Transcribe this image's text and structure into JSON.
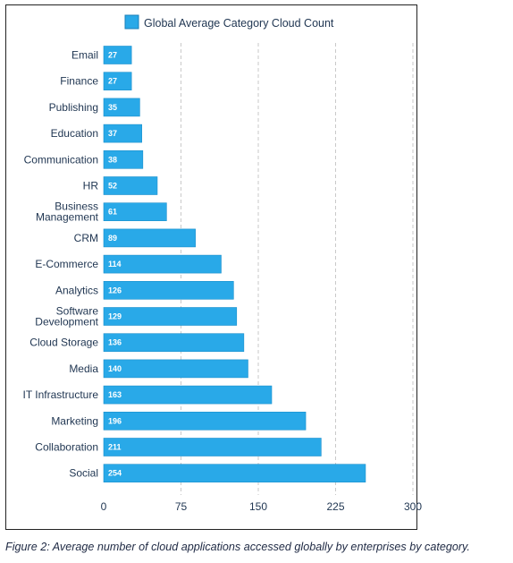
{
  "chart_data": {
    "type": "bar",
    "orientation": "horizontal",
    "legend": "top",
    "legend_label": "Global Average Category Cloud Count",
    "categories": [
      "Email",
      "Finance",
      "Publishing",
      "Education",
      "Communication",
      "HR",
      "Business Management",
      "CRM",
      "E-Commerce",
      "Analytics",
      "Software Development",
      "Cloud Storage",
      "Media",
      "IT Infrastructure",
      "Marketing",
      "Collaboration",
      "Social"
    ],
    "category_lines": [
      [
        "Email"
      ],
      [
        "Finance"
      ],
      [
        "Publishing"
      ],
      [
        "Education"
      ],
      [
        "Communication"
      ],
      [
        "HR"
      ],
      [
        "Business",
        "Management"
      ],
      [
        "CRM"
      ],
      [
        "E-Commerce"
      ],
      [
        "Analytics"
      ],
      [
        "Software",
        "Development"
      ],
      [
        "Cloud Storage"
      ],
      [
        "Media"
      ],
      [
        "IT Infrastructure"
      ],
      [
        "Marketing"
      ],
      [
        "Collaboration"
      ],
      [
        "Social"
      ]
    ],
    "values": [
      27,
      27,
      35,
      37,
      38,
      52,
      61,
      89,
      114,
      126,
      129,
      136,
      140,
      163,
      196,
      211,
      254
    ],
    "xlim": [
      0,
      300
    ],
    "xticks": [
      0,
      75,
      150,
      225,
      300
    ],
    "grid": "vertical-dashed",
    "bar_color": "#29a9e8"
  },
  "caption": "Figure 2: Average number of cloud applications accessed globally by enterprises by category."
}
